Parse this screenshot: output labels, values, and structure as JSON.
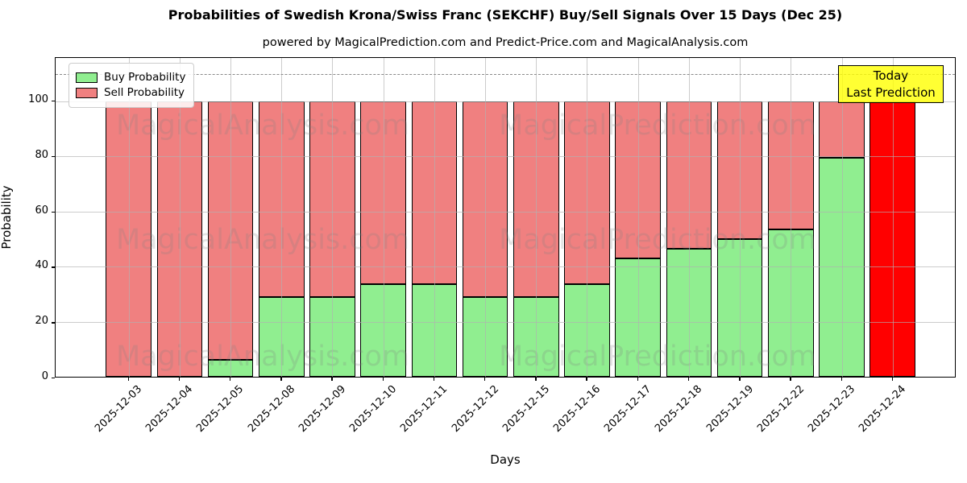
{
  "title": "Probabilities of Swedish Krona/Swiss Franc (SEKCHF) Buy/Sell Signals Over 15 Days (Dec 25)",
  "subtitle": "powered by MagicalPrediction.com and Predict-Price.com and MagicalAnalysis.com",
  "legend": {
    "items": [
      {
        "label": "Buy Probability",
        "color": "#90ee90"
      },
      {
        "label": "Sell Probability",
        "color": "#f08080"
      }
    ]
  },
  "annotation": {
    "line1": "Today",
    "line2": "Last Prediction",
    "bg_color": "#ffff00"
  },
  "watermarks": {
    "left": "MagicalAnalysis.com",
    "right": "MagicalPrediction.com"
  },
  "colors": {
    "buy": "#90ee90",
    "sell": "#f08080",
    "today_bar": "#ff0000",
    "bar_edge": "#000000",
    "grid": "#b0b0b0",
    "dashed_line": "#8a8a8a",
    "annotation_bg": "#ffff00"
  },
  "chart_data": {
    "type": "bar",
    "stacked": true,
    "title": "Probabilities of Swedish Krona/Swiss Franc (SEKCHF) Buy/Sell Signals Over 15 Days (Dec 25)",
    "xlabel": "Days",
    "ylabel": "Probability",
    "categories": [
      "2025-12-03",
      "2025-12-04",
      "2025-12-05",
      "2025-12-08",
      "2025-12-09",
      "2025-12-10",
      "2025-12-11",
      "2025-12-12",
      "2025-12-15",
      "2025-12-16",
      "2025-12-17",
      "2025-12-18",
      "2025-12-19",
      "2025-12-22",
      "2025-12-23",
      "2025-12-24"
    ],
    "series": [
      {
        "name": "Buy Probability",
        "color": "#90ee90",
        "values": [
          0,
          0,
          6,
          29,
          29,
          33.5,
          33.5,
          29,
          29,
          33.5,
          43,
          46.5,
          50,
          53.5,
          79.5,
          0
        ]
      },
      {
        "name": "Sell Probability",
        "color": "#f08080",
        "values": [
          100,
          100,
          94,
          71,
          71,
          66.5,
          66.5,
          71,
          71,
          66.5,
          57,
          53.5,
          50,
          46.5,
          20.5,
          100
        ]
      }
    ],
    "today_bar": {
      "category": "2025-12-24",
      "index": 15,
      "color": "#ff0000",
      "value": 100
    },
    "yticks": [
      0,
      20,
      40,
      60,
      80,
      100
    ],
    "ytick_labels": [
      "0",
      "20",
      "40",
      "60",
      "80",
      "100"
    ],
    "ylim": [
      0,
      115.7
    ],
    "dashed_guide_y": 110,
    "grid": true,
    "legend_position": "upper left"
  }
}
